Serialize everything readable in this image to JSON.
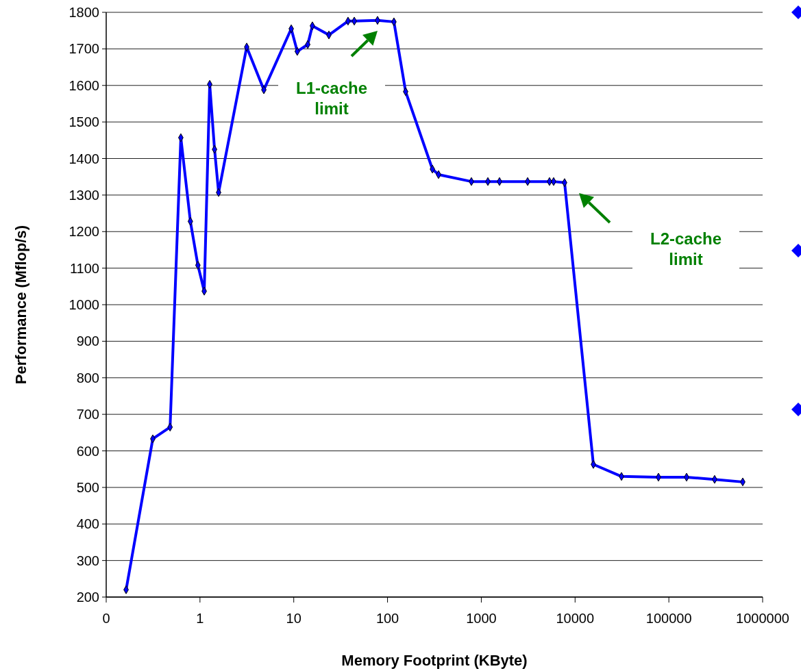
{
  "chart_data": {
    "type": "line",
    "xlabel": "Memory Footprint (KByte)",
    "ylabel": "Performance (Mflop/s)",
    "log": "x",
    "grid": "y",
    "marker": "diamond",
    "line_style": "solid",
    "xlim": [
      0.1,
      1000000
    ],
    "xticks": [
      {
        "value": 0.1,
        "label": "0"
      },
      1,
      10,
      100,
      1000,
      10000,
      100000,
      1000000
    ],
    "ylim": [
      200,
      1800
    ],
    "yticks": [
      200,
      300,
      400,
      500,
      600,
      700,
      800,
      900,
      1000,
      1100,
      1200,
      1300,
      1400,
      1500,
      1600,
      1700,
      1800
    ],
    "series": [
      {
        "color": "#0000ff",
        "x": [
          0.163,
          0.314,
          0.48,
          0.625,
          0.79,
          0.95,
          1.11,
          1.27,
          1.43,
          1.58,
          3.15,
          4.8,
          9.4,
          10.9,
          14.1,
          15.8,
          23.7,
          37.9,
          44.2,
          78.2,
          117,
          156,
          301,
          350,
          784,
          1175,
          1563,
          3119,
          5335,
          5904,
          7727,
          15670,
          31260,
          77450,
          154500,
          307600,
          613800
        ],
        "values": [
          220,
          633,
          665,
          1457,
          1228,
          1108,
          1037,
          1603,
          1425,
          1307,
          1705,
          1588,
          1755,
          1693,
          1712,
          1763,
          1738,
          1776,
          1776,
          1778,
          1774,
          1583,
          1371,
          1356,
          1337,
          1337,
          1337,
          1337,
          1337,
          1337,
          1334,
          563,
          530,
          528,
          528,
          522,
          515
        ]
      }
    ],
    "annotations": [
      "L1-cache limit",
      "L2-cache limit"
    ]
  }
}
